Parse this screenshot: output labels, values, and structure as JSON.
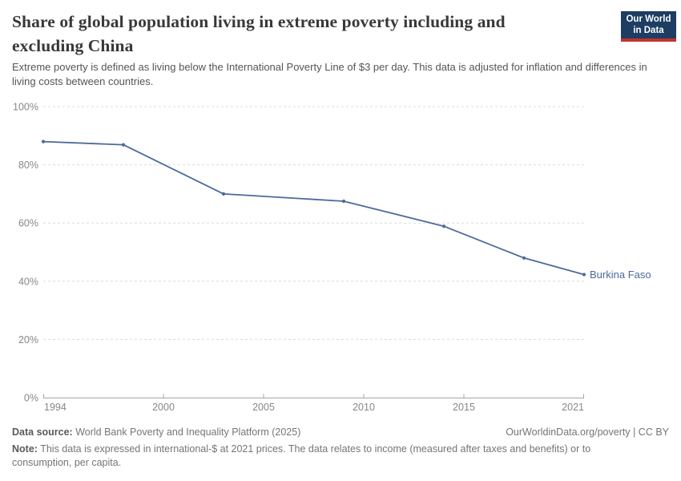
{
  "header": {
    "title": "Share of global population living in extreme poverty including and excluding China",
    "subtitle": "Extreme poverty is defined as living below the International Poverty Line of $3 per day. This data is adjusted for inflation and differences in living costs between countries.",
    "logo": {
      "text": "Our World in Data"
    }
  },
  "chart_data": {
    "type": "line",
    "title": "Share of global population living in extreme poverty including and excluding China",
    "xlabel": "",
    "ylabel": "",
    "xlim": [
      1994,
      2021
    ],
    "ylim": [
      0,
      100
    ],
    "grid": "horizontal-dashed",
    "legend_position": "end-of-line-label",
    "x_ticks": [
      1994,
      2000,
      2005,
      2010,
      2015,
      2021
    ],
    "x_tick_labels": [
      "1994",
      "2000",
      "2005",
      "2010",
      "2015",
      "2021"
    ],
    "y_ticks": [
      0,
      20,
      40,
      60,
      80,
      100
    ],
    "y_tick_labels": [
      "0%",
      "20%",
      "40%",
      "60%",
      "80%",
      "100%"
    ],
    "series": [
      {
        "name": "Burkina Faso",
        "color": "#4c6a9c",
        "points": [
          {
            "year": 1994,
            "value": 88.0
          },
          {
            "year": 1998,
            "value": 86.9
          },
          {
            "year": 2003,
            "value": 70.0
          },
          {
            "year": 2009,
            "value": 67.5
          },
          {
            "year": 2014,
            "value": 58.9
          },
          {
            "year": 2018,
            "value": 48.0
          },
          {
            "year": 2021,
            "value": 42.3
          }
        ]
      }
    ],
    "colors": {
      "grid": "#dcdcdc",
      "axis": "#a5a5a5",
      "tick_label": "#878787"
    }
  },
  "footer": {
    "source_label": "Data source:",
    "source_text": " World Bank Poverty and Inequality Platform (2025)",
    "rights": "OurWorldinData.org/poverty | CC BY",
    "note_label": "Note:",
    "note_text": " This data is expressed in international-$ at 2021 prices. The data relates to income (measured after taxes and benefits) or to consumption, per capita."
  }
}
